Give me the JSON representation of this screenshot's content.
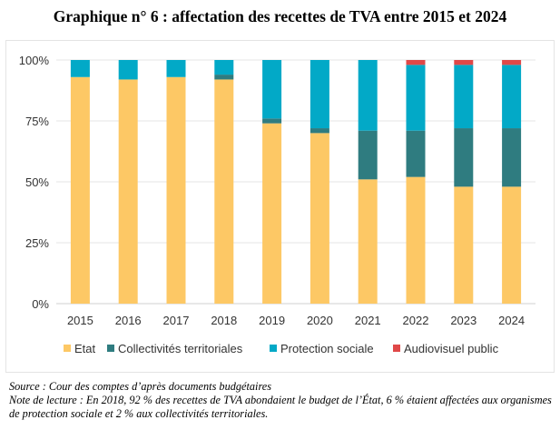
{
  "title": "Graphique n° 6 :  affectation des recettes de TVA entre 2015 et 2024",
  "chart_data": {
    "type": "bar",
    "stacked": true,
    "categories": [
      "2015",
      "2016",
      "2017",
      "2018",
      "2019",
      "2020",
      "2021",
      "2022",
      "2023",
      "2024"
    ],
    "ylim": [
      0,
      100
    ],
    "yticks": [
      "0%",
      "25%",
      "50%",
      "75%",
      "100%"
    ],
    "grid": true,
    "legend": "bottom",
    "series": [
      {
        "name": "Etat",
        "color": "#FDC865",
        "values": [
          93,
          92,
          93,
          92,
          74,
          70,
          51,
          52,
          48,
          48
        ]
      },
      {
        "name": "Collectivités territoriales",
        "color": "#2F7C80",
        "values": [
          0,
          0,
          0,
          2,
          2,
          2,
          20,
          19,
          24,
          24
        ]
      },
      {
        "name": "Protection sociale",
        "color": "#02A9C7",
        "values": [
          7,
          8,
          7,
          6,
          24,
          28,
          29,
          27,
          26,
          26
        ]
      },
      {
        "name": "Audiovisuel public",
        "color": "#E04848",
        "values": [
          0,
          0,
          0,
          0,
          0,
          0,
          0,
          2,
          2,
          2
        ]
      }
    ]
  },
  "source": "Source : Cour des comptes d’après documents budgétaires",
  "note": "Note de lecture : En 2018, 92 % des recettes de TVA abondaient le budget de l’État, 6 % étaient affectées aux organismes de protection sociale et 2 % aux collectivités territoriales."
}
